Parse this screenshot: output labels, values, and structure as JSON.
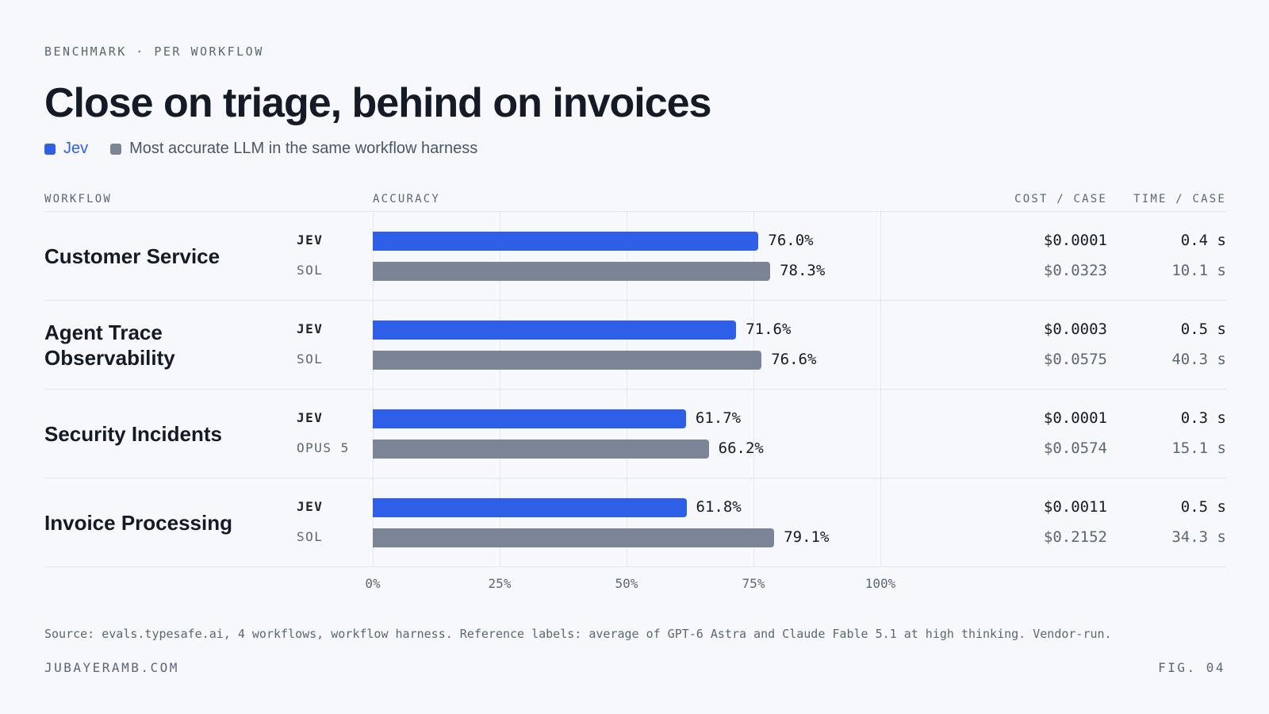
{
  "eyebrow": "BENCHMARK · PER WORKFLOW",
  "title": "Close on triage, behind on invoices",
  "legend": {
    "jev": "Jev",
    "reference": "Most accurate LLM in the same workflow harness"
  },
  "columns": {
    "workflow": "WORKFLOW",
    "accuracy": "ACCURACY",
    "cost": "COST / CASE",
    "time": "TIME / CASE"
  },
  "colors": {
    "jev": "#2d5fe9",
    "reference": "#7c8595"
  },
  "chart_data": {
    "type": "bar",
    "orientation": "horizontal",
    "title": "Close on triage, behind on invoices",
    "xlabel": "ACCURACY",
    "xlim": [
      0,
      100
    ],
    "x_ticks": [
      "0%",
      "25%",
      "50%",
      "75%",
      "100%"
    ],
    "categories": [
      "Customer Service",
      "Agent Trace Observability",
      "Security Incidents",
      "Invoice Processing"
    ],
    "series": [
      {
        "name": "Jev",
        "values": [
          76.0,
          71.6,
          61.7,
          61.8
        ]
      },
      {
        "name": "Most accurate LLM in the same workflow harness",
        "values": [
          78.3,
          76.6,
          66.2,
          79.1
        ]
      }
    ],
    "grid": true,
    "legend_position": "top-left"
  },
  "rows": [
    {
      "workflow": "Customer Service",
      "jev": {
        "model": "JEV",
        "accuracy": 76.0,
        "label": "76.0%",
        "cost": "$0.0001",
        "time": "0.4 s"
      },
      "ref": {
        "model": "SOL",
        "accuracy": 78.3,
        "label": "78.3%",
        "cost": "$0.0323",
        "time": "10.1 s"
      }
    },
    {
      "workflow": "Agent Trace Observability",
      "jev": {
        "model": "JEV",
        "accuracy": 71.6,
        "label": "71.6%",
        "cost": "$0.0003",
        "time": "0.5 s"
      },
      "ref": {
        "model": "SOL",
        "accuracy": 76.6,
        "label": "76.6%",
        "cost": "$0.0575",
        "time": "40.3 s"
      }
    },
    {
      "workflow": "Security Incidents",
      "jev": {
        "model": "JEV",
        "accuracy": 61.7,
        "label": "61.7%",
        "cost": "$0.0001",
        "time": "0.3 s"
      },
      "ref": {
        "model": "OPUS 5",
        "accuracy": 66.2,
        "label": "66.2%",
        "cost": "$0.0574",
        "time": "15.1 s"
      }
    },
    {
      "workflow": "Invoice Processing",
      "jev": {
        "model": "JEV",
        "accuracy": 61.8,
        "label": "61.8%",
        "cost": "$0.0011",
        "time": "0.5 s"
      },
      "ref": {
        "model": "SOL",
        "accuracy": 79.1,
        "label": "79.1%",
        "cost": "$0.2152",
        "time": "34.3 s"
      }
    }
  ],
  "source": "Source: evals.typesafe.ai, 4 workflows, workflow harness. Reference labels: average of GPT-6 Astra and Claude Fable 5.1 at high thinking. Vendor-run.",
  "site": "JUBAYERAMB.COM",
  "fig": "FIG. 04"
}
